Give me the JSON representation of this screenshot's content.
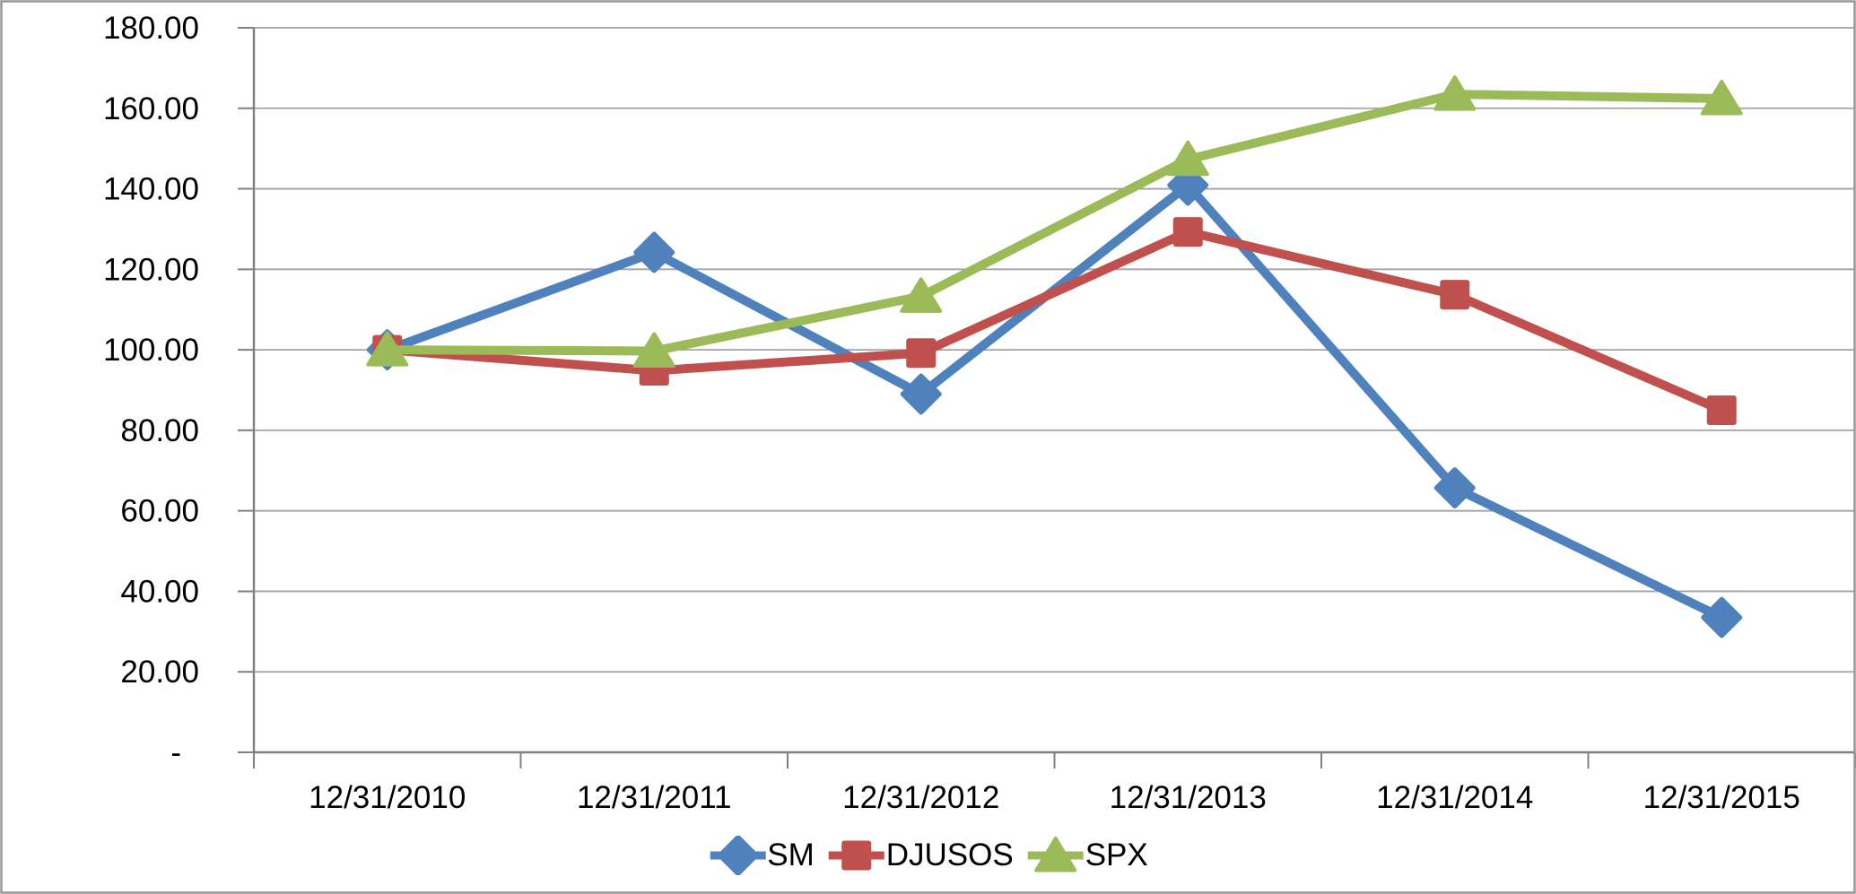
{
  "chart_data": {
    "type": "line",
    "title": "",
    "xlabel": "",
    "ylabel": "",
    "categories": [
      "12/31/2010",
      "12/31/2011",
      "12/31/2012",
      "12/31/2013",
      "12/31/2014",
      "12/31/2015"
    ],
    "series": [
      {
        "name": "SM",
        "color": "#4F81BD",
        "marker": "diamond",
        "values": [
          100.0,
          124.2,
          89.0,
          140.9,
          65.7,
          33.5
        ]
      },
      {
        "name": "DJUSOS",
        "color": "#C0504D",
        "marker": "square",
        "values": [
          100.0,
          94.8,
          99.2,
          129.3,
          113.7,
          85.0
        ]
      },
      {
        "name": "SPX",
        "color": "#9BBB59",
        "marker": "triangle",
        "values": [
          100.0,
          99.7,
          113.3,
          147.3,
          163.5,
          162.4
        ]
      }
    ],
    "ylim": [
      0,
      180
    ],
    "ytick_interval": 20,
    "ytick_labels": [
      "180.00",
      "160.00",
      "140.00",
      "120.00",
      "100.00",
      "80.00",
      "60.00",
      "40.00",
      "20.00",
      "-"
    ],
    "grid": true,
    "legend_position": "bottom",
    "legend": [
      "SM",
      "DJUSOS",
      "SPX"
    ]
  },
  "style": {
    "background": "#FFFFFF",
    "border_color": "#979797",
    "axis_color": "#808080",
    "gridline_color": "#A3A3A3",
    "text_color": "#000000"
  }
}
